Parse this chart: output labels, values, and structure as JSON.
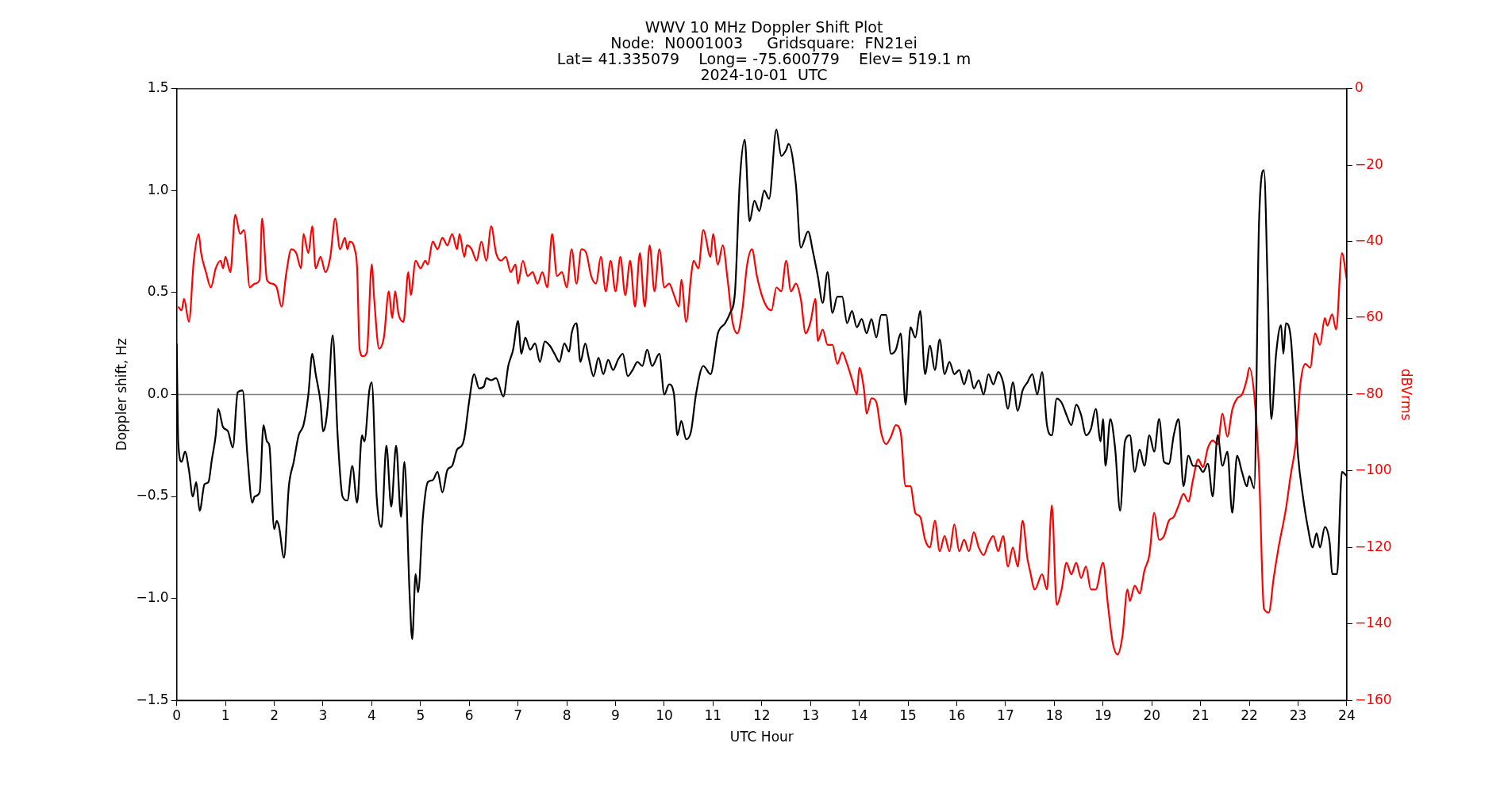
{
  "chart_data": {
    "type": "line",
    "title": "WWV 10 MHz Doppler Shift Plot\nNode:  N0001003     Gridsquare:  FN21ei\nLat= 41.335079    Long= -75.600779    Elev= 519.1 m\n2024-10-01  UTC",
    "xlabel": "UTC Hour",
    "ylabel": "Doppler shift, Hz",
    "y2label": "dBVrms",
    "xlim": [
      0,
      24
    ],
    "xticks": [
      0,
      1,
      2,
      3,
      4,
      5,
      6,
      7,
      8,
      9,
      10,
      11,
      12,
      13,
      14,
      15,
      16,
      17,
      18,
      19,
      20,
      21,
      22,
      23,
      24
    ],
    "ylim": [
      -1.5,
      1.5
    ],
    "yticks": [
      {
        "value": -1.5,
        "label": "−1.5"
      },
      {
        "value": -1.0,
        "label": "−1.0"
      },
      {
        "value": -0.5,
        "label": "−0.5"
      },
      {
        "value": 0,
        "label": "0.0"
      },
      {
        "value": 0.5,
        "label": "0.5"
      },
      {
        "value": 1.0,
        "label": "1.0"
      },
      {
        "value": 1.5,
        "label": "1.5"
      }
    ],
    "y2lim": [
      -160,
      0
    ],
    "y2ticks": [
      {
        "value": -160,
        "label": "−160"
      },
      {
        "value": -140,
        "label": "−140"
      },
      {
        "value": -120,
        "label": "−120"
      },
      {
        "value": -100,
        "label": "−100"
      },
      {
        "value": -80,
        "label": "−80"
      },
      {
        "value": -60,
        "label": "−60"
      },
      {
        "value": -40,
        "label": "−40"
      },
      {
        "value": -20,
        "label": "−20"
      },
      {
        "value": 0,
        "label": "0"
      }
    ],
    "grid": false,
    "legend": false,
    "marker": "none",
    "line_style": "solid",
    "ref_lines": [
      {
        "axis": "y",
        "value": 0,
        "color": "#808080"
      }
    ],
    "series": [
      {
        "color": "#000000",
        "axis": "y",
        "x": [
          0,
          0.03,
          0.1,
          0.17,
          0.25,
          0.33,
          0.4,
          0.47,
          0.57,
          0.65,
          0.72,
          0.8,
          0.85,
          0.95,
          1.05,
          1.15,
          1.25,
          1.35,
          1.45,
          1.55,
          1.6,
          1.7,
          1.78,
          1.85,
          1.9,
          2.0,
          2.05,
          2.1,
          2.2,
          2.3,
          2.4,
          2.5,
          2.6,
          2.7,
          2.78,
          2.85,
          2.95,
          3.0,
          3.05,
          3.1,
          3.2,
          3.3,
          3.4,
          3.5,
          3.6,
          3.7,
          3.8,
          3.85,
          3.95,
          4.0,
          4.1,
          4.2,
          4.3,
          4.4,
          4.5,
          4.6,
          4.67,
          4.78,
          4.83,
          4.9,
          4.95,
          5.05,
          5.15,
          5.25,
          5.35,
          5.45,
          5.55,
          5.65,
          5.75,
          5.85,
          5.9,
          6.0,
          6.1,
          6.2,
          6.3,
          6.35,
          6.45,
          6.55,
          6.7,
          6.8,
          6.9,
          7.0,
          7.07,
          7.15,
          7.25,
          7.35,
          7.45,
          7.55,
          7.65,
          7.75,
          7.85,
          7.95,
          8.05,
          8.1,
          8.2,
          8.28,
          8.38,
          8.45,
          8.55,
          8.65,
          8.75,
          8.85,
          8.95,
          9.05,
          9.15,
          9.25,
          9.35,
          9.45,
          9.55,
          9.65,
          9.75,
          9.9,
          10.0,
          10.1,
          10.2,
          10.27,
          10.35,
          10.45,
          10.55,
          10.65,
          10.8,
          10.95,
          11.1,
          11.25,
          11.35,
          11.45,
          11.55,
          11.65,
          11.75,
          11.85,
          11.95,
          12.05,
          12.15,
          12.3,
          12.4,
          12.5,
          12.55,
          12.7,
          12.8,
          12.95,
          13.05,
          13.15,
          13.25,
          13.35,
          13.45,
          13.55,
          13.65,
          13.75,
          13.85,
          13.95,
          14.05,
          14.15,
          14.25,
          14.35,
          14.45,
          14.55,
          14.65,
          14.75,
          14.85,
          14.95,
          15.05,
          15.15,
          15.25,
          15.35,
          15.45,
          15.55,
          15.65,
          15.75,
          15.85,
          15.95,
          16.05,
          16.15,
          16.25,
          16.35,
          16.45,
          16.55,
          16.65,
          16.75,
          16.85,
          16.95,
          17.05,
          17.15,
          17.25,
          17.35,
          17.45,
          17.55,
          17.65,
          17.75,
          17.85,
          17.95,
          18.05,
          18.15,
          18.25,
          18.35,
          18.45,
          18.55,
          18.65,
          18.75,
          18.85,
          18.95,
          19.0,
          19.05,
          19.15,
          19.25,
          19.35,
          19.45,
          19.55,
          19.65,
          19.75,
          19.85,
          19.95,
          20.05,
          20.15,
          20.25,
          20.35,
          20.45,
          20.55,
          20.65,
          20.75,
          20.85,
          20.95,
          21.05,
          21.15,
          21.25,
          21.35,
          21.45,
          21.55,
          21.65,
          21.75,
          21.85,
          21.95,
          22.0,
          22.1,
          22.2,
          22.3,
          22.38,
          22.45,
          22.55,
          22.65,
          22.7,
          22.75,
          22.85,
          23.0,
          23.1,
          23.2,
          23.3,
          23.38,
          23.45,
          23.55,
          23.65,
          23.7,
          23.8,
          23.9,
          24.0
        ],
        "values": [
          0.25,
          -0.23,
          -0.33,
          -0.28,
          -0.37,
          -0.5,
          -0.43,
          -0.57,
          -0.44,
          -0.43,
          -0.32,
          -0.2,
          -0.07,
          -0.16,
          -0.18,
          -0.26,
          0.01,
          0.02,
          -0.3,
          -0.53,
          -0.5,
          -0.48,
          -0.15,
          -0.23,
          -0.25,
          -0.66,
          -0.62,
          -0.65,
          -0.8,
          -0.45,
          -0.33,
          -0.2,
          -0.15,
          0.0,
          0.2,
          0.1,
          -0.04,
          -0.18,
          -0.15,
          -0.05,
          0.29,
          -0.2,
          -0.5,
          -0.52,
          -0.35,
          -0.53,
          -0.2,
          -0.23,
          0.02,
          0.06,
          -0.5,
          -0.65,
          -0.25,
          -0.55,
          -0.25,
          -0.6,
          -0.33,
          -1.0,
          -1.2,
          -0.88,
          -0.97,
          -0.6,
          -0.43,
          -0.42,
          -0.38,
          -0.48,
          -0.37,
          -0.35,
          -0.27,
          -0.25,
          -0.21,
          -0.03,
          0.1,
          0.03,
          0.04,
          0.08,
          0.07,
          0.08,
          -0.01,
          0.14,
          0.22,
          0.36,
          0.2,
          0.28,
          0.22,
          0.25,
          0.16,
          0.26,
          0.24,
          0.2,
          0.16,
          0.25,
          0.21,
          0.3,
          0.35,
          0.16,
          0.25,
          0.18,
          0.09,
          0.18,
          0.1,
          0.17,
          0.12,
          0.17,
          0.2,
          0.09,
          0.12,
          0.16,
          0.14,
          0.22,
          0.14,
          0.2,
          0.0,
          0.05,
          0.0,
          -0.2,
          -0.13,
          -0.22,
          -0.18,
          0.0,
          0.14,
          0.1,
          0.3,
          0.35,
          0.4,
          0.5,
          1.05,
          1.25,
          0.85,
          0.95,
          0.9,
          1.0,
          0.96,
          1.3,
          1.17,
          1.2,
          1.23,
          1.03,
          0.72,
          0.8,
          0.7,
          0.58,
          0.45,
          0.6,
          0.4,
          0.48,
          0.48,
          0.35,
          0.41,
          0.33,
          0.37,
          0.3,
          0.37,
          0.28,
          0.39,
          0.39,
          0.2,
          0.22,
          0.3,
          -0.05,
          0.33,
          0.28,
          0.41,
          0.1,
          0.24,
          0.12,
          0.27,
          0.1,
          0.16,
          0.1,
          0.12,
          0.05,
          0.12,
          0.03,
          0.07,
          0.0,
          0.1,
          0.05,
          0.11,
          0.06,
          -0.07,
          0.06,
          -0.08,
          0.02,
          0.06,
          0.1,
          0.0,
          0.11,
          -0.15,
          -0.2,
          -0.02,
          -0.04,
          -0.1,
          -0.15,
          -0.05,
          -0.1,
          -0.2,
          -0.17,
          -0.07,
          -0.23,
          -0.12,
          -0.35,
          -0.12,
          -0.27,
          -0.57,
          -0.23,
          -0.2,
          -0.38,
          -0.27,
          -0.35,
          -0.2,
          -0.28,
          -0.12,
          -0.33,
          -0.34,
          -0.2,
          -0.12,
          -0.45,
          -0.3,
          -0.35,
          -0.35,
          -0.38,
          -0.34,
          -0.5,
          -0.2,
          -0.35,
          -0.28,
          -0.58,
          -0.3,
          -0.38,
          -0.45,
          -0.4,
          -0.46,
          0.85,
          1.1,
          0.5,
          -0.12,
          0.2,
          0.34,
          0.2,
          0.35,
          0.28,
          -0.3,
          -0.5,
          -0.65,
          -0.75,
          -0.68,
          -0.75,
          -0.65,
          -0.73,
          -0.88,
          -0.88,
          -0.38,
          -0.4
        ]
      },
      {
        "color": "#ff0000",
        "axis": "y2",
        "x": [
          0.03,
          0.1,
          0.15,
          0.25,
          0.35,
          0.45,
          0.5,
          0.6,
          0.7,
          0.8,
          0.9,
          0.95,
          1.0,
          1.1,
          1.2,
          1.3,
          1.38,
          1.5,
          1.6,
          1.7,
          1.75,
          1.85,
          1.95,
          2.05,
          2.15,
          2.25,
          2.35,
          2.45,
          2.55,
          2.6,
          2.7,
          2.78,
          2.85,
          2.95,
          3.05,
          3.15,
          3.25,
          3.35,
          3.45,
          3.5,
          3.55,
          3.65,
          3.7,
          3.75,
          3.82,
          3.9,
          4.0,
          4.05,
          4.15,
          4.25,
          4.35,
          4.42,
          4.48,
          4.55,
          4.65,
          4.75,
          4.8,
          4.9,
          5.0,
          5.1,
          5.15,
          5.25,
          5.35,
          5.45,
          5.55,
          5.65,
          5.75,
          5.8,
          5.9,
          5.95,
          6.05,
          6.15,
          6.25,
          6.35,
          6.45,
          6.55,
          6.65,
          6.75,
          6.85,
          6.95,
          7.0,
          7.1,
          7.2,
          7.3,
          7.4,
          7.5,
          7.6,
          7.7,
          7.8,
          7.9,
          8.0,
          8.1,
          8.2,
          8.3,
          8.4,
          8.5,
          8.6,
          8.7,
          8.8,
          8.9,
          9.0,
          9.1,
          9.2,
          9.3,
          9.4,
          9.5,
          9.6,
          9.7,
          9.8,
          9.9,
          10.0,
          10.1,
          10.2,
          10.3,
          10.35,
          10.45,
          10.55,
          10.6,
          10.7,
          10.8,
          10.95,
          11.0,
          11.1,
          11.2,
          11.3,
          11.4,
          11.5,
          11.6,
          11.7,
          11.8,
          11.9,
          12.0,
          12.1,
          12.2,
          12.3,
          12.4,
          12.5,
          12.6,
          12.7,
          12.8,
          12.9,
          13.0,
          13.1,
          13.15,
          13.25,
          13.35,
          13.45,
          13.55,
          13.65,
          13.75,
          13.85,
          13.95,
          14.0,
          14.1,
          14.15,
          14.25,
          14.35,
          14.45,
          14.55,
          14.65,
          14.75,
          14.85,
          14.95,
          15.05,
          15.15,
          15.25,
          15.35,
          15.45,
          15.55,
          15.65,
          15.75,
          15.85,
          15.95,
          16.05,
          16.15,
          16.25,
          16.35,
          16.45,
          16.55,
          16.65,
          16.75,
          16.85,
          16.95,
          17.05,
          17.15,
          17.25,
          17.35,
          17.45,
          17.5,
          17.6,
          17.75,
          17.85,
          17.95,
          18.05,
          18.15,
          18.25,
          18.35,
          18.45,
          18.55,
          18.65,
          18.75,
          18.85,
          19.0,
          19.1,
          19.2,
          19.3,
          19.4,
          19.5,
          19.55,
          19.65,
          19.75,
          19.85,
          19.95,
          20.05,
          20.15,
          20.25,
          20.35,
          20.45,
          20.55,
          20.65,
          20.75,
          20.85,
          20.95,
          21.05,
          21.15,
          21.25,
          21.35,
          21.45,
          21.55,
          21.65,
          21.75,
          21.85,
          21.95,
          22.0,
          22.1,
          22.2,
          22.3,
          22.4,
          22.5,
          22.6,
          22.75,
          22.85,
          22.95,
          23.05,
          23.15,
          23.25,
          23.35,
          23.45,
          23.55,
          23.6,
          23.7,
          23.78,
          23.9,
          24.0
        ],
        "values": [
          -57,
          -58,
          -55,
          -61,
          -45,
          -38,
          -43,
          -48,
          -52,
          -47,
          -45,
          -47,
          -44,
          -48,
          -33,
          -38,
          -37,
          -52,
          -51,
          -50,
          -34,
          -50,
          -51,
          -52,
          -57,
          -48,
          -42,
          -43,
          -47,
          -38,
          -43,
          -36,
          -47,
          -44,
          -48,
          -44,
          -34,
          -42,
          -39,
          -42,
          -40,
          -42,
          -47,
          -68,
          -70,
          -69,
          -46,
          -55,
          -68,
          -65,
          -53,
          -60,
          -53,
          -59,
          -61,
          -48,
          -54,
          -45,
          -47,
          -45,
          -46,
          -40,
          -42,
          -39,
          -41,
          -38,
          -42,
          -38,
          -44,
          -41,
          -42,
          -45,
          -40,
          -45,
          -36,
          -43,
          -45,
          -44,
          -48,
          -46,
          -51,
          -45,
          -49,
          -48,
          -51,
          -48,
          -52,
          -38,
          -49,
          -48,
          -52,
          -42,
          -51,
          -42,
          -43,
          -49,
          -51,
          -44,
          -53,
          -45,
          -53,
          -44,
          -54,
          -45,
          -57,
          -43,
          -57,
          -41,
          -53,
          -42,
          -52,
          -51,
          -54,
          -57,
          -50,
          -61,
          -49,
          -45,
          -47,
          -37,
          -44,
          -38,
          -46,
          -41,
          -50,
          -61,
          -64,
          -58,
          -46,
          -42,
          -49,
          -54,
          -57,
          -58,
          -52,
          -53,
          -45,
          -53,
          -51,
          -55,
          -64,
          -61,
          -55,
          -66,
          -63,
          -67,
          -67,
          -72,
          -69,
          -72,
          -76,
          -80,
          -73,
          -79,
          -85,
          -81,
          -82,
          -90,
          -93,
          -91,
          -88,
          -90,
          -104,
          -104,
          -111,
          -112,
          -118,
          -120,
          -113,
          -121,
          -117,
          -121,
          -114,
          -121,
          -118,
          -121,
          -116,
          -120,
          -122,
          -119,
          -117,
          -121,
          -117,
          -125,
          -120,
          -125,
          -113,
          -123,
          -126,
          -131,
          -127,
          -131,
          -109,
          -135,
          -131,
          -124,
          -127,
          -124,
          -128,
          -125,
          -131,
          -131,
          -124,
          -135,
          -145,
          -148,
          -143,
          -131,
          -134,
          -130,
          -132,
          -126,
          -122,
          -111,
          -118,
          -117,
          -113,
          -112,
          -109,
          -106,
          -108,
          -102,
          -97,
          -99,
          -94,
          -92,
          -93,
          -85,
          -91,
          -84,
          -81,
          -80,
          -76,
          -73,
          -80,
          -100,
          -136,
          -137,
          -128,
          -120,
          -110,
          -101,
          -93,
          -77,
          -72,
          -73,
          -64,
          -67,
          -60,
          -62,
          -59,
          -63,
          -43,
          -50
        ]
      }
    ]
  }
}
